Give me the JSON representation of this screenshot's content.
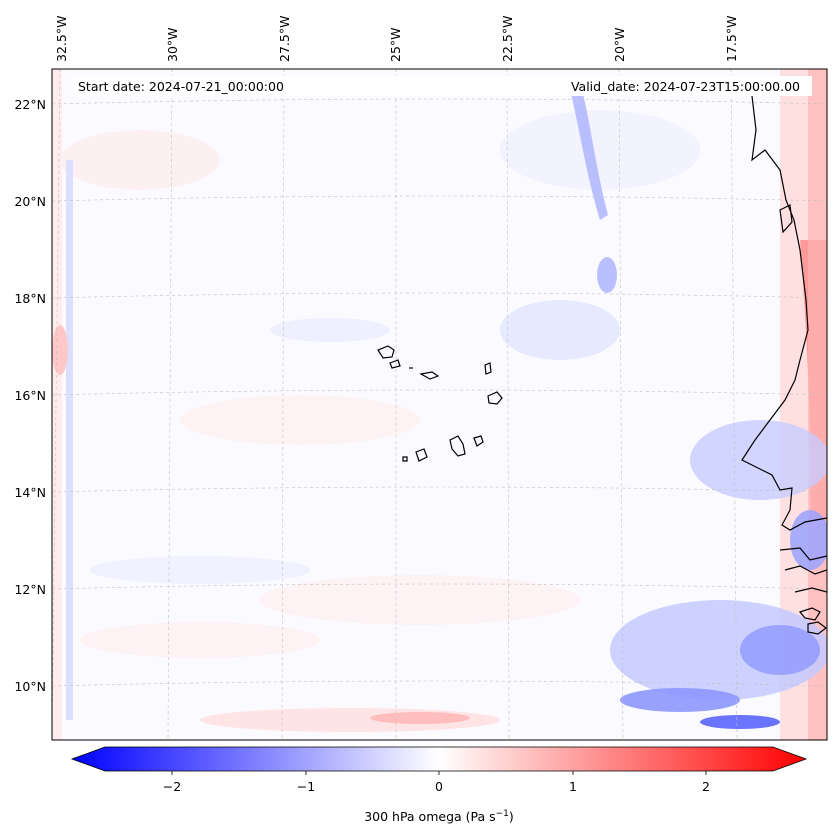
{
  "map": {
    "annotations": {
      "start_date": "Start date: 2024-07-21_00:00:00",
      "valid_date": "Valid_date: 2024-07-23T15:00:00.00"
    },
    "lon_labels": [
      "32.5°W",
      "30°W",
      "27.5°W",
      "25°W",
      "22.5°W",
      "20°W",
      "17.5°W"
    ],
    "lat_labels": [
      "22°N",
      "20°N",
      "18°N",
      "16°N",
      "14°N",
      "12°N",
      "10°N"
    ],
    "gridlines": true,
    "coastline_color": "#000000",
    "field": "300 hPa omega"
  },
  "colorbar": {
    "label_text": "300 hPa omega (Pa s",
    "label_sup": "−1",
    "label_close": ")",
    "range": [
      -2.7,
      2.7
    ],
    "ticks": [
      "−2",
      "−1",
      "0",
      "1",
      "2"
    ],
    "colors": {
      "low": "#0000ff",
      "mid": "#ffffff",
      "high": "#ff0000"
    }
  }
}
